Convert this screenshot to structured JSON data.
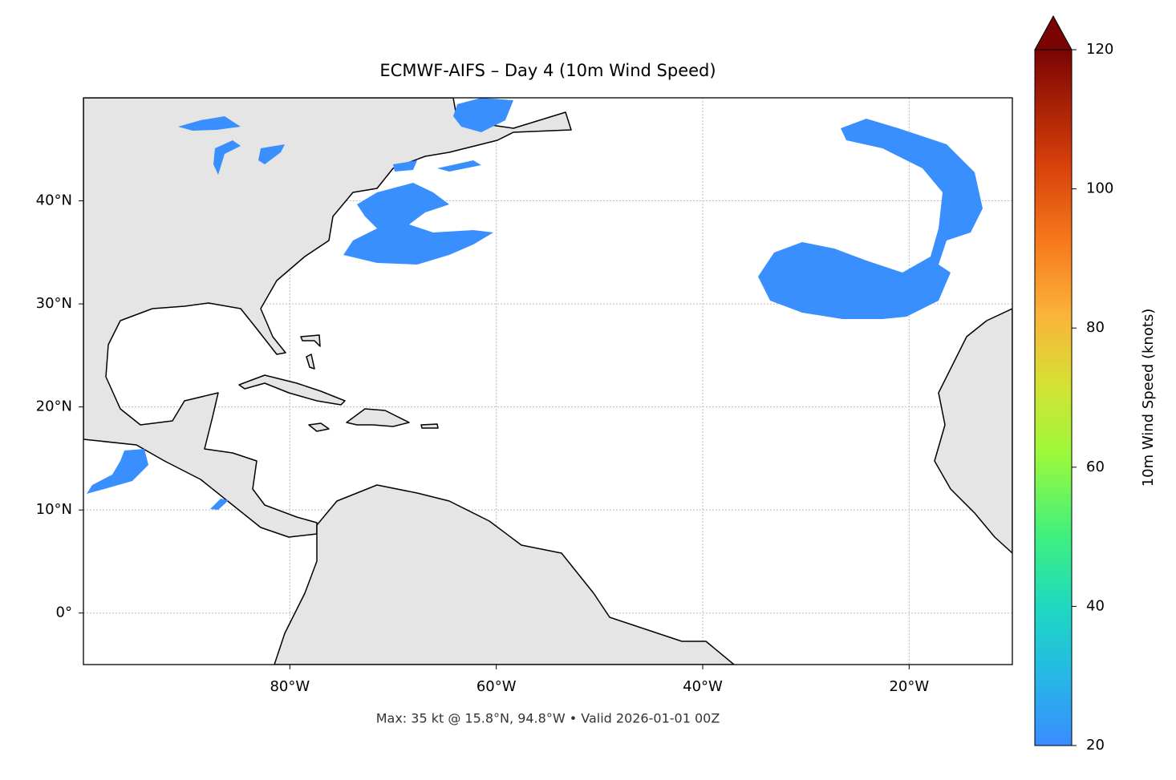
{
  "title": "ECMWF-AIFS – Day 4 (10m Wind Speed)",
  "footer": "Max: 35 kt @ 15.8°N, 94.8°W • Valid 2026-01-01 00Z",
  "map": {
    "xlim": [
      -100,
      -10
    ],
    "ylim": [
      -5,
      50
    ],
    "xticks": [
      {
        "value": -80,
        "label": "80°W"
      },
      {
        "value": -60,
        "label": "60°W"
      },
      {
        "value": -40,
        "label": "40°W"
      },
      {
        "value": -20,
        "label": "20°W"
      }
    ],
    "yticks": [
      {
        "value": 0,
        "label": "0°"
      },
      {
        "value": 10,
        "label": "10°N"
      },
      {
        "value": 20,
        "label": "20°N"
      },
      {
        "value": 30,
        "label": "30°N"
      },
      {
        "value": 40,
        "label": "40°N"
      }
    ],
    "grid": true
  },
  "colorbar": {
    "label": "10m Wind Speed (knots)",
    "lim": [
      20,
      120
    ],
    "ticks": [
      20,
      40,
      60,
      80,
      100,
      120
    ]
  }
}
